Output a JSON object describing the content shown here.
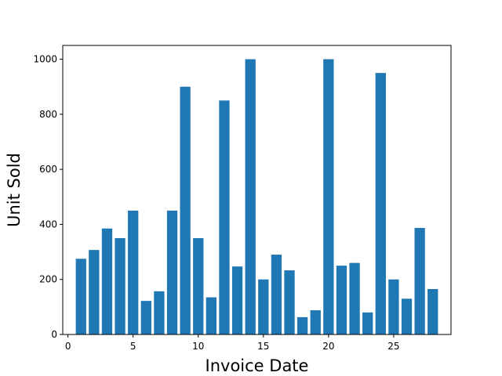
{
  "chart_data": {
    "type": "bar",
    "title": "",
    "xlabel": "Invoice Date",
    "ylabel": "Unit Sold",
    "x": [
      1,
      2,
      3,
      4,
      5,
      6,
      7,
      8,
      9,
      10,
      11,
      12,
      13,
      14,
      15,
      16,
      17,
      18,
      19,
      20,
      21,
      22,
      23,
      24,
      25,
      26,
      27,
      28
    ],
    "values": [
      275,
      307,
      385,
      350,
      450,
      122,
      157,
      450,
      900,
      350,
      135,
      850,
      247,
      1000,
      200,
      290,
      233,
      63,
      88,
      1000,
      250,
      260,
      80,
      950,
      200,
      130,
      387,
      165
    ],
    "xlim": [
      -0.4,
      29.4
    ],
    "ylim": [
      0,
      1050
    ],
    "xticks": [
      "0",
      "5",
      "10",
      "15",
      "20",
      "25"
    ],
    "yticks": [
      "0",
      "200",
      "400",
      "600",
      "800",
      "1000"
    ],
    "bar_color": "#1f77b4",
    "grid": false,
    "legend": "none"
  }
}
